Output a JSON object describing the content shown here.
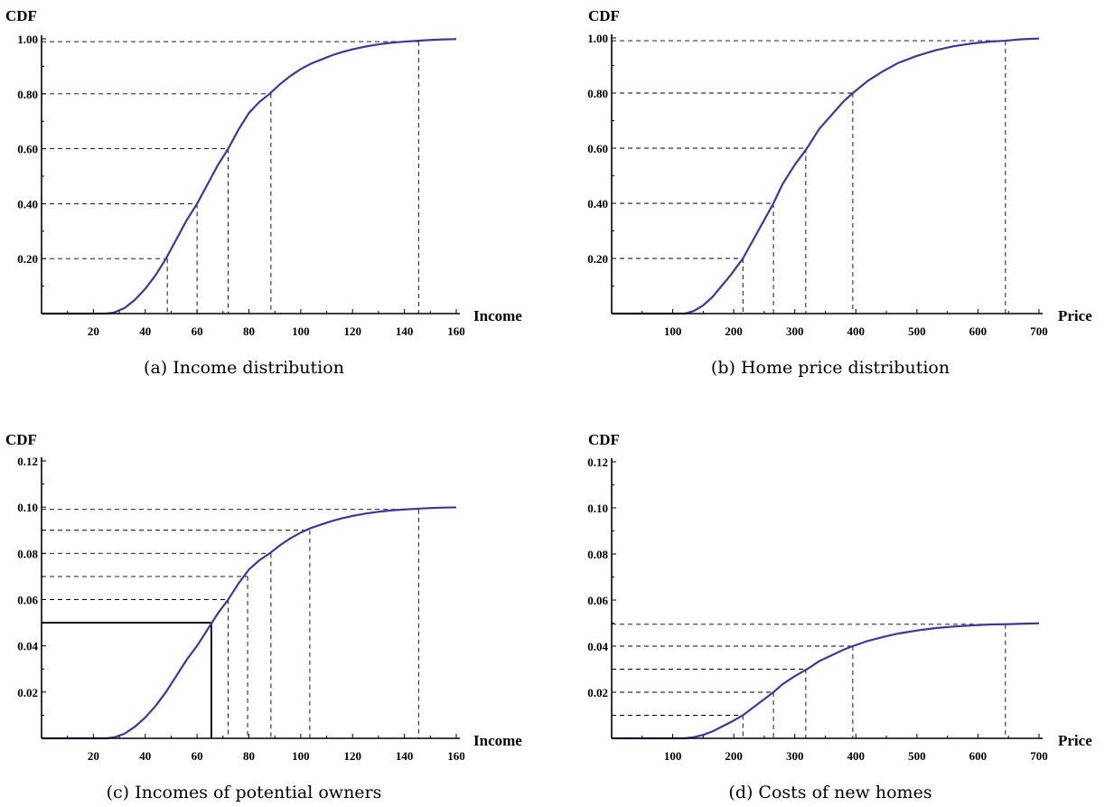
{
  "chart_data": [
    {
      "id": "a",
      "type": "line",
      "caption": "(a)  Income distribution",
      "ylabel": "CDF",
      "xlabel": "Income",
      "xlim": [
        0,
        160
      ],
      "ylim": [
        0,
        1.0
      ],
      "xticks": [
        20,
        40,
        60,
        80,
        100,
        120,
        140,
        160
      ],
      "xtick_labels": [
        "20",
        "40",
        "60",
        "80",
        "100",
        "120",
        "140",
        "160"
      ],
      "yticks": [
        0.2,
        0.4,
        0.6,
        0.8,
        1.0
      ],
      "ytick_labels": [
        "0.20",
        "0.40",
        "0.60",
        "0.80",
        "1.00"
      ],
      "curve": {
        "x": [
          25,
          28,
          32,
          36,
          40,
          44,
          48,
          52,
          56,
          60,
          64,
          68,
          72,
          76,
          80,
          84,
          88,
          92,
          96,
          100,
          104,
          108,
          112,
          116,
          120,
          125,
          130,
          135,
          140,
          145,
          150,
          155,
          160
        ],
        "y": [
          0.0,
          0.004,
          0.02,
          0.05,
          0.09,
          0.14,
          0.2,
          0.27,
          0.34,
          0.4,
          0.47,
          0.54,
          0.6,
          0.67,
          0.73,
          0.77,
          0.8,
          0.835,
          0.865,
          0.89,
          0.91,
          0.925,
          0.94,
          0.952,
          0.962,
          0.972,
          0.98,
          0.986,
          0.99,
          0.993,
          0.996,
          0.998,
          0.999
        ]
      },
      "dashed_guides": [
        {
          "x": 48.5,
          "y": 0.2
        },
        {
          "x": 60,
          "y": 0.4
        },
        {
          "x": 72,
          "y": 0.6
        },
        {
          "x": 88.5,
          "y": 0.8
        },
        {
          "x": 145.5,
          "y": 0.99
        }
      ],
      "solid_guides": []
    },
    {
      "id": "b",
      "type": "line",
      "caption": "(b)  Home price distribution",
      "ylabel": "CDF",
      "xlabel": "Price",
      "xlim": [
        0,
        700
      ],
      "ylim": [
        0,
        1.0
      ],
      "xticks": [
        100,
        200,
        300,
        400,
        500,
        600,
        700
      ],
      "xtick_labels": [
        "100",
        "200",
        "300",
        "400",
        "500",
        "600",
        "700"
      ],
      "yticks": [
        0.2,
        0.4,
        0.6,
        0.8,
        1.0
      ],
      "ytick_labels": [
        "0.20",
        "0.40",
        "0.60",
        "0.80",
        "1.00"
      ],
      "curve": {
        "x": [
          120,
          135,
          150,
          165,
          180,
          195,
          215,
          235,
          250,
          265,
          280,
          300,
          320,
          340,
          360,
          380,
          395,
          420,
          445,
          470,
          500,
          530,
          560,
          590,
          620,
          645,
          670,
          700
        ],
        "y": [
          0.0,
          0.01,
          0.03,
          0.06,
          0.1,
          0.14,
          0.2,
          0.28,
          0.34,
          0.4,
          0.47,
          0.54,
          0.6,
          0.67,
          0.72,
          0.77,
          0.8,
          0.845,
          0.88,
          0.91,
          0.935,
          0.955,
          0.97,
          0.98,
          0.987,
          0.99,
          0.995,
          0.998
        ]
      },
      "dashed_guides": [
        {
          "x": 215,
          "y": 0.2
        },
        {
          "x": 265,
          "y": 0.4
        },
        {
          "x": 318,
          "y": 0.6
        },
        {
          "x": 395,
          "y": 0.8
        },
        {
          "x": 645,
          "y": 0.99
        }
      ],
      "solid_guides": []
    },
    {
      "id": "c",
      "type": "line",
      "caption": "(c)  Incomes of potential owners",
      "ylabel": "CDF",
      "xlabel": "Income",
      "xlim": [
        0,
        160
      ],
      "ylim": [
        0,
        0.12
      ],
      "xticks": [
        20,
        40,
        60,
        80,
        100,
        120,
        140,
        160
      ],
      "xtick_labels": [
        "20",
        "40",
        "60",
        "80",
        "100",
        "120",
        "140",
        "160"
      ],
      "yticks": [
        0.02,
        0.04,
        0.06,
        0.08,
        0.1,
        0.12
      ],
      "ytick_labels": [
        "0.02",
        "0.04",
        "0.06",
        "0.08",
        "0.10",
        "0.12"
      ],
      "curve": {
        "x": [
          25,
          28,
          32,
          36,
          40,
          44,
          48,
          52,
          56,
          60,
          64,
          68,
          72,
          76,
          80,
          84,
          88,
          92,
          96,
          100,
          104,
          108,
          112,
          116,
          120,
          125,
          130,
          135,
          140,
          145,
          150,
          155,
          160
        ],
        "y": [
          0.0,
          0.0004,
          0.002,
          0.005,
          0.009,
          0.014,
          0.02,
          0.027,
          0.034,
          0.04,
          0.047,
          0.054,
          0.06,
          0.067,
          0.073,
          0.077,
          0.08,
          0.0835,
          0.0865,
          0.089,
          0.091,
          0.0925,
          0.094,
          0.0952,
          0.0962,
          0.0972,
          0.098,
          0.0986,
          0.099,
          0.0993,
          0.0996,
          0.0998,
          0.0999
        ]
      },
      "dashed_guides": [
        {
          "x": 72,
          "y": 0.06
        },
        {
          "x": 79.5,
          "y": 0.07
        },
        {
          "x": 88.5,
          "y": 0.08
        },
        {
          "x": 103.5,
          "y": 0.09
        },
        {
          "x": 145.5,
          "y": 0.099
        }
      ],
      "solid_guides": [
        {
          "x": 65.5,
          "y": 0.05
        }
      ]
    },
    {
      "id": "d",
      "type": "line",
      "caption": "(d)  Costs of new homes",
      "ylabel": "CDF",
      "xlabel": "Price",
      "xlim": [
        0,
        700
      ],
      "ylim": [
        0,
        0.12
      ],
      "xticks": [
        100,
        200,
        300,
        400,
        500,
        600,
        700
      ],
      "xtick_labels": [
        "100",
        "200",
        "300",
        "400",
        "500",
        "600",
        "700"
      ],
      "yticks": [
        0.02,
        0.04,
        0.06,
        0.08,
        0.1,
        0.12
      ],
      "ytick_labels": [
        "0.02",
        "0.04",
        "0.06",
        "0.08",
        "0.10",
        "0.12"
      ],
      "curve": {
        "x": [
          120,
          135,
          150,
          165,
          180,
          195,
          215,
          235,
          250,
          265,
          280,
          300,
          320,
          340,
          360,
          380,
          395,
          420,
          445,
          470,
          500,
          530,
          560,
          590,
          620,
          645,
          670,
          700
        ],
        "y": [
          0.0,
          0.0005,
          0.0015,
          0.003,
          0.005,
          0.007,
          0.01,
          0.014,
          0.017,
          0.02,
          0.0235,
          0.027,
          0.03,
          0.0335,
          0.036,
          0.0385,
          0.04,
          0.0423,
          0.044,
          0.0455,
          0.0468,
          0.0478,
          0.0485,
          0.049,
          0.0494,
          0.0495,
          0.0497,
          0.0499
        ]
      },
      "dashed_guides": [
        {
          "x": 215,
          "y": 0.01
        },
        {
          "x": 265,
          "y": 0.02
        },
        {
          "x": 318,
          "y": 0.03
        },
        {
          "x": 395,
          "y": 0.04
        },
        {
          "x": 645,
          "y": 0.0495
        }
      ],
      "solid_guides": []
    }
  ]
}
